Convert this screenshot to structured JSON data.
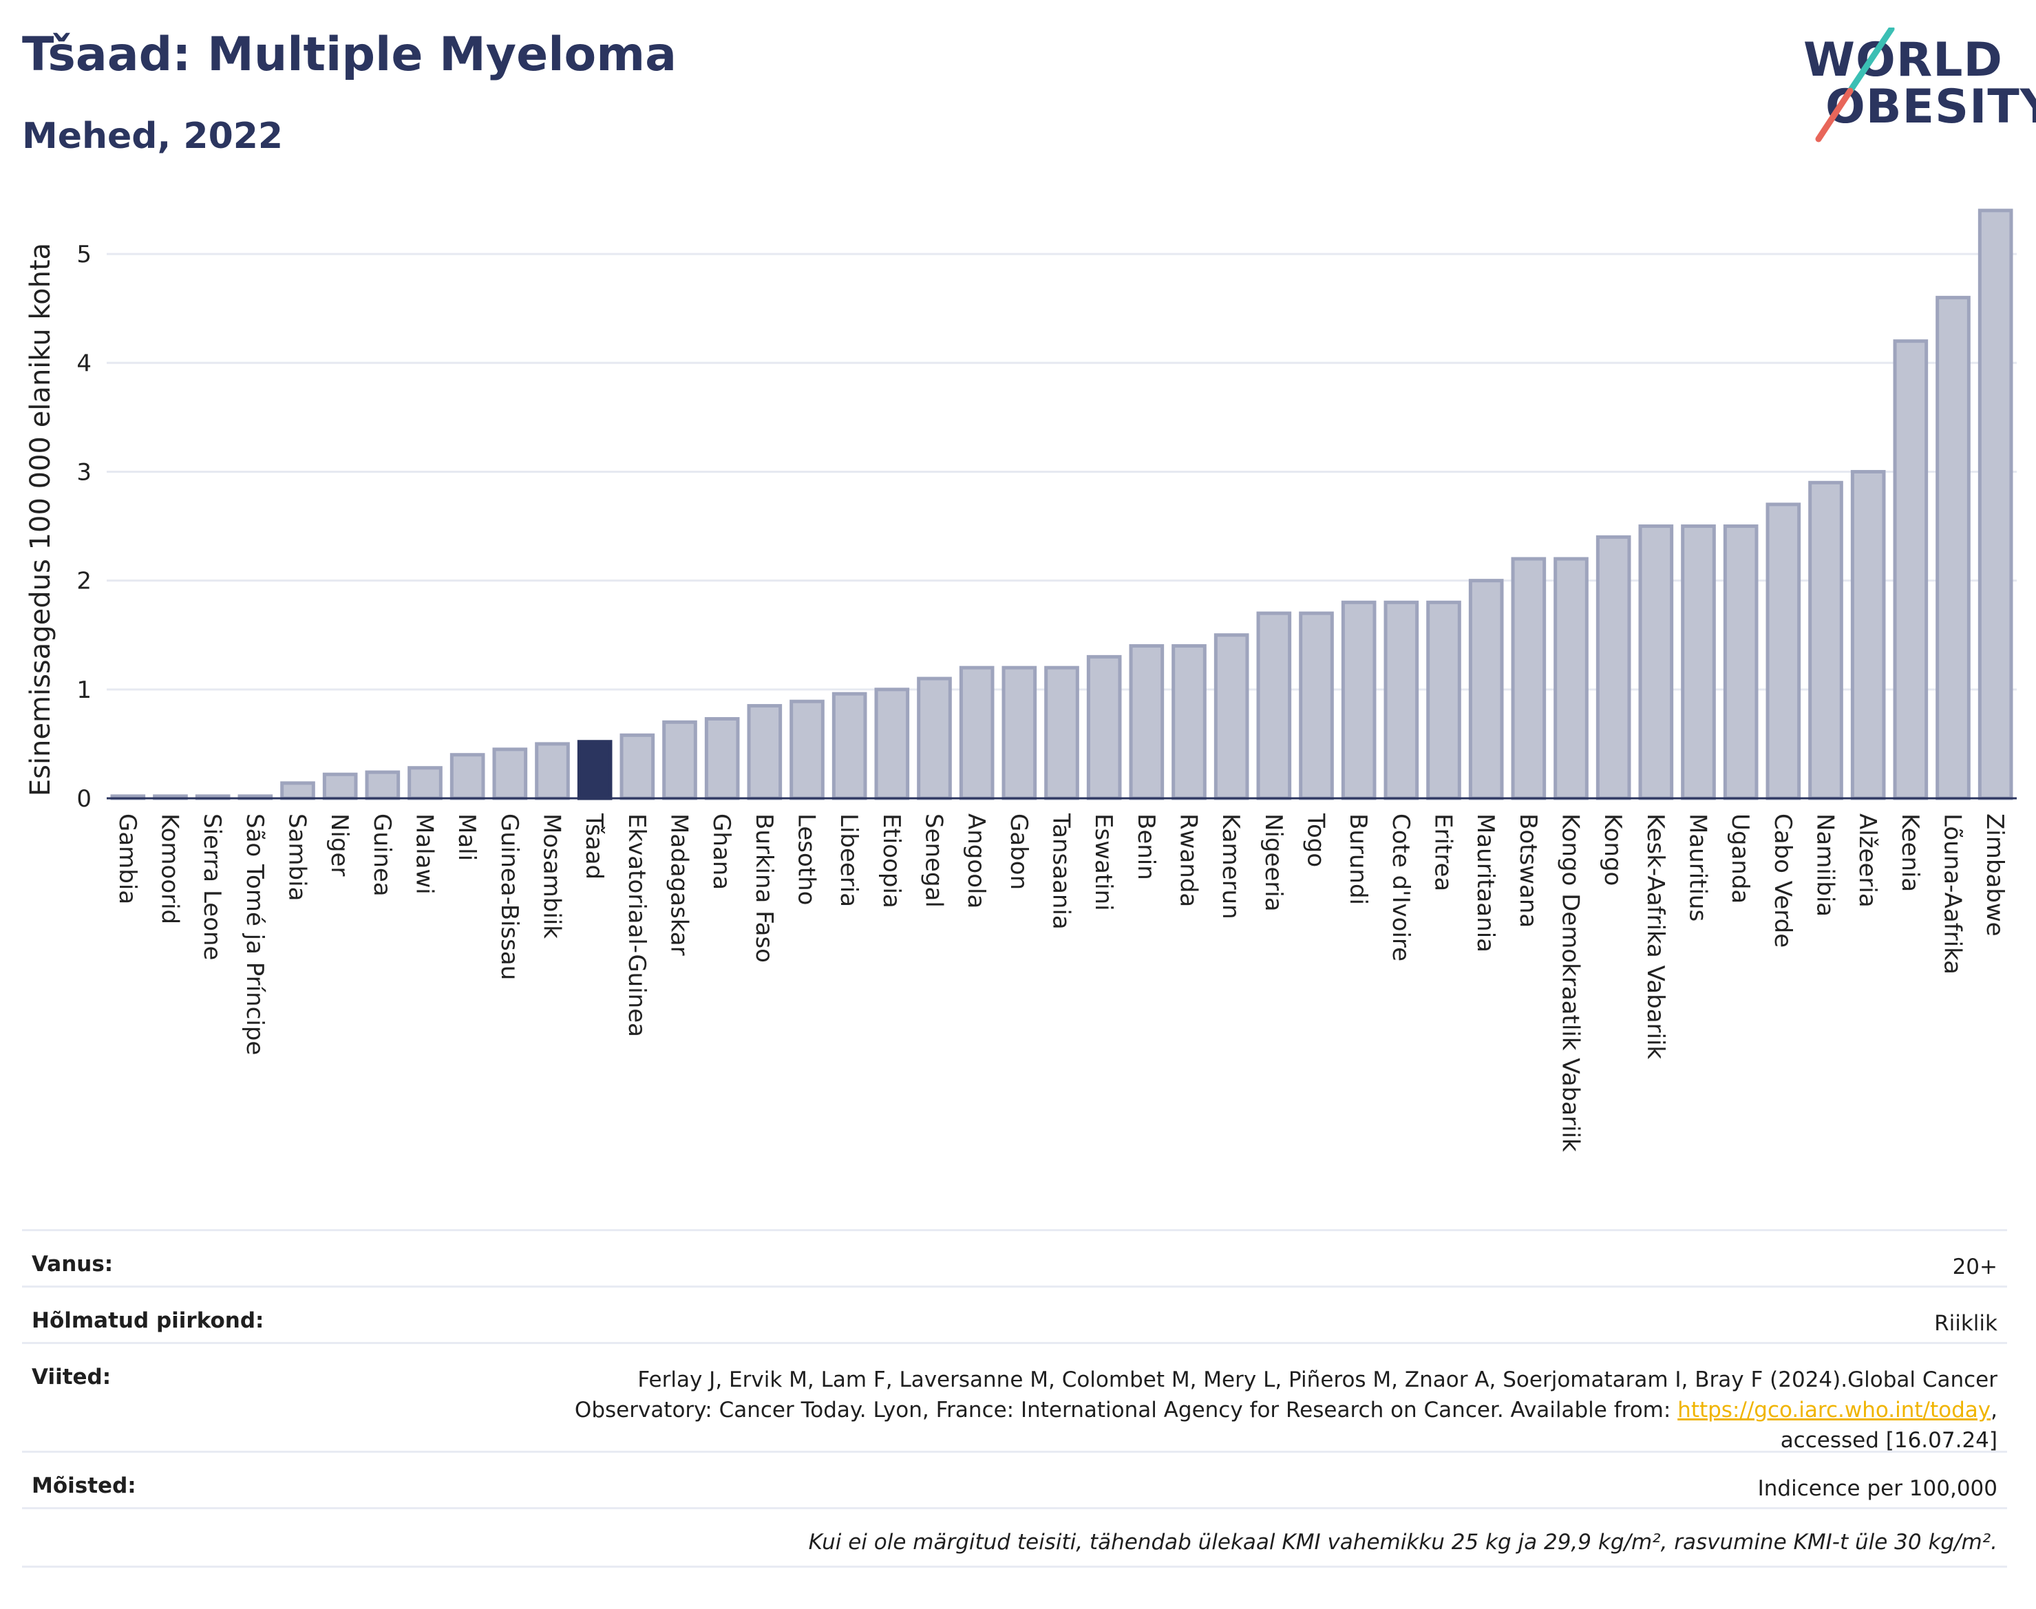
{
  "header": {
    "title": "Tšaad: Multiple Myeloma",
    "subtitle": "Mehed, 2022"
  },
  "logo": {
    "line1": "WORLD",
    "line2": "OBESITY"
  },
  "chart_data": {
    "type": "bar",
    "ylabel": "Esinemissagedus 100 000 elaniku kohta",
    "ylim": [
      0,
      5.5
    ],
    "yticks": [
      0,
      1,
      2,
      3,
      4,
      5
    ],
    "highlight": "Tšaad",
    "colors": {
      "bar": "#bfc3d2",
      "bar_border": "#9ea4bd",
      "highlight": "#2b355f",
      "grid": "#e6e9f1"
    },
    "categories": [
      "Gambia",
      "Komoorid",
      "Sierra Leone",
      "São Tomé ja Príncipe",
      "Sambia",
      "Niger",
      "Guinea",
      "Malawi",
      "Mali",
      "Guinea-Bissau",
      "Mosambiik",
      "Tšaad",
      "Ekvatoriaal-Guinea",
      "Madagaskar",
      "Ghana",
      "Burkina Faso",
      "Lesotho",
      "Libeeria",
      "Etioopia",
      "Senegal",
      "Angoola",
      "Gabon",
      "Tansaania",
      "Eswatini",
      "Benin",
      "Rwanda",
      "Kamerun",
      "Nigeeria",
      "Togo",
      "Burundi",
      "Cote d'Ivoire",
      "Eritrea",
      "Mauritaania",
      "Botswana",
      "Kongo Demokraatlik Vabariik",
      "Kongo",
      "Kesk-Aafrika Vabariik",
      "Mauritius",
      "Uganda",
      "Cabo Verde",
      "Namiibia",
      "Alžeeria",
      "Keenia",
      "Lõuna-Aafrika",
      "Zimbabwe"
    ],
    "values": [
      0.02,
      0.02,
      0.02,
      0.02,
      0.14,
      0.22,
      0.24,
      0.28,
      0.4,
      0.45,
      0.5,
      0.52,
      0.58,
      0.7,
      0.73,
      0.85,
      0.89,
      0.96,
      1.0,
      1.1,
      1.2,
      1.2,
      1.2,
      1.3,
      1.4,
      1.4,
      1.5,
      1.7,
      1.7,
      1.8,
      1.8,
      1.8,
      2.0,
      2.2,
      2.2,
      2.4,
      2.5,
      2.5,
      2.5,
      2.7,
      2.9,
      3.0,
      4.2,
      4.6,
      5.4
    ]
  },
  "meta": {
    "age_label": "Vanus:",
    "age_value": "20+",
    "coverage_label": "Hõlmatud piirkond:",
    "coverage_value": "Riiklik",
    "refs_label": "Viited:",
    "refs_line1": "Ferlay J, Ervik M, Lam F, Laversanne M, Colombet M, Mery L, Piñeros M, Znaor A, Soerjomataram I, Bray F (2024).Global Cancer",
    "refs_line2": "Observatory: Cancer Today. Lyon, France: International Agency for Research on Cancer. Available from: ",
    "refs_link": "https://gco.iarc.who.int/today",
    "refs_line2_end": ",",
    "refs_line3": "accessed [16.07.24]",
    "defs_label": "Mõisted:",
    "defs_value": "Indicence per 100,000",
    "note": "Kui ei ole märgitud teisiti, tähendab ülekaal KMI vahemikku 25 kg ja 29,9 kg/m², rasvumine KMI-t üle 30 kg/m²."
  }
}
